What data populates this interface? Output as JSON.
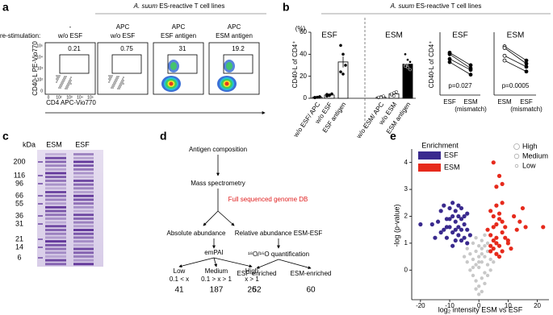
{
  "panel_labels": [
    "a",
    "b",
    "c",
    "d",
    "e"
  ],
  "flow": {
    "header_italic": "A. suum",
    "header_rest": "ES-reactive T cell lines",
    "row_label": "re-stimulation:",
    "columns": [
      {
        "line1": "-",
        "line2": "w/o ESF"
      },
      {
        "line1": "APC",
        "line2": "w/o ESF"
      },
      {
        "line1": "APC",
        "line2": "ESF antigen"
      },
      {
        "line1": "APC",
        "line2": "ESM antigen"
      }
    ],
    "gate_values": [
      0.21,
      0.75,
      31,
      19.2
    ],
    "y_label": "CD40-L PE-Vio770",
    "x_label": "CD4 APC-Vio770",
    "axis_ticks": [
      "0",
      "10²",
      "10³",
      "10⁴",
      "10⁵"
    ]
  },
  "b_header": {
    "italic": "A. suum",
    "rest": "ES-reactive T cell lines"
  },
  "gel": {
    "unit": "kDa",
    "lanes": [
      "ESM",
      "ESF"
    ],
    "markers": [
      200,
      116,
      96,
      66,
      55,
      36,
      31,
      21,
      14,
      6
    ]
  },
  "diagram": {
    "start": "Antigen composition",
    "ms": "Mass spectrometry",
    "db": "Full sequenced genome DB",
    "absolute": "Absolute abundance",
    "relative": "Relative abundance ESM-ESF",
    "empai": "emPAI",
    "quant": "¹⁸O/¹⁶O quantification",
    "levels": [
      {
        "name": "Low",
        "range": "0.1 < x",
        "count": 41
      },
      {
        "name": "Medium",
        "range": "0.1 > x > 1",
        "count": 187
      },
      {
        "name": "High",
        "range": "x > 1",
        "count": 26
      }
    ],
    "enriched": [
      {
        "name": "ESF-enriched",
        "count": 52
      },
      {
        "name": "ESM-enriched",
        "count": 60
      }
    ]
  },
  "chart_data": [
    {
      "type": "bar",
      "y_label": "CD40-L of CD4⁺",
      "y_unit": "(%)",
      "groups": [
        "ESF",
        "ESM"
      ],
      "categories": [
        "w/o ESF/ APC",
        "w/o ESF",
        "ESF antigen",
        "w/o ESM/ APC",
        "w/o ESM",
        "ESM antigen"
      ],
      "values": [
        1,
        3,
        33,
        1,
        4,
        31
      ],
      "errors": [
        0.2,
        0.4,
        5,
        0.3,
        0.7,
        1.8
      ],
      "points": [
        [
          0.5,
          1,
          1.5,
          0.8
        ],
        [
          2,
          3,
          4,
          3.5,
          2.5
        ],
        [
          48,
          40,
          30,
          24,
          22
        ],
        [
          0.5,
          1.5,
          2,
          1,
          0.8
        ],
        [
          3,
          5,
          6,
          4,
          2
        ],
        [
          40,
          35,
          33,
          30,
          28,
          26,
          29
        ]
      ],
      "colors": [
        "#ffffff",
        "#ffffff",
        "#ffffff",
        "#ffffff",
        "#ffffff",
        "#000000"
      ],
      "ylim": [
        0,
        60
      ],
      "yticks": [
        0,
        20,
        40,
        60
      ]
    },
    {
      "type": "paired",
      "title": "ESF",
      "y_label": "CD40-L of CD4⁺",
      "categories": [
        "ESF",
        "ESM"
      ],
      "category_notes": [
        null,
        "(mismatch)"
      ],
      "series": [
        {
          "values": [
            27,
            19
          ]
        },
        {
          "values": [
            26,
            17
          ]
        },
        {
          "values": [
            23,
            16
          ]
        },
        {
          "values": [
            21,
            13
          ]
        }
      ],
      "annotation": "p=0.027",
      "ylim": [
        0,
        40
      ]
    },
    {
      "type": "paired",
      "title": "ESM",
      "categories": [
        "ESM",
        "ESF"
      ],
      "category_notes": [
        null,
        "(mismatch)"
      ],
      "series": [
        {
          "values": [
            31,
            22
          ]
        },
        {
          "values": [
            30,
            20
          ]
        },
        {
          "values": [
            25,
            18
          ]
        },
        {
          "values": [
            22,
            15
          ]
        }
      ],
      "annotation": "p=0.0005",
      "ylim": [
        0,
        40
      ]
    },
    {
      "type": "scatter",
      "x_label": "log₂ intensity ESM vs ESF",
      "y_label": "-log (p-value)",
      "legend_title": "Enrichment",
      "size_legend": [
        "High",
        "Medium",
        "Low"
      ],
      "series": [
        {
          "name": "ESF",
          "color": "#3a2a8e",
          "x": [
            -14,
            -13,
            -12,
            -12,
            -11,
            -11,
            -10,
            -10,
            -9,
            -9,
            -9,
            -8,
            -8,
            -8,
            -7,
            -7,
            -7,
            -6,
            -6,
            -6,
            -5,
            -5,
            -5,
            -4,
            -4,
            -13,
            -11,
            -10,
            -8,
            -6,
            -16,
            -15,
            -3,
            -4,
            -7,
            -9,
            -20
          ],
          "values": [
            1.8,
            2.2,
            1.5,
            2.4,
            1.9,
            1.2,
            2.3,
            1.6,
            2.0,
            1.4,
            2.5,
            1.8,
            1.1,
            2.2,
            1.6,
            2.0,
            1.3,
            1.9,
            1.5,
            2.3,
            1.7,
            1.2,
            2.0,
            1.5,
            1.0,
            1.4,
            1.6,
            1.9,
            1.5,
            1.1,
            1.7,
            1.2,
            1.3,
            2.1,
            2.4,
            0.9,
            1.7
          ]
        },
        {
          "name": "ESM",
          "color": "#e62a1c",
          "x": [
            5,
            6,
            7,
            8,
            4,
            5,
            6,
            7,
            8,
            9,
            3,
            4,
            5,
            6,
            7,
            8,
            9,
            10,
            4,
            5,
            6,
            7,
            8,
            12,
            14,
            15,
            16,
            6,
            7,
            8,
            5,
            10,
            11,
            13,
            22,
            4,
            6
          ],
          "values": [
            4.0,
            3.1,
            3.5,
            3.2,
            2.2,
            2.0,
            2.4,
            2.1,
            1.8,
            1.6,
            1.5,
            1.3,
            1.1,
            1.0,
            0.9,
            1.4,
            1.2,
            1.1,
            0.7,
            0.8,
            0.6,
            0.5,
            0.7,
            2.0,
            1.8,
            2.3,
            1.6,
            1.7,
            1.9,
            2.5,
            1.6,
            1.0,
            0.8,
            1.5,
            1.6,
            0.9,
            1.2
          ]
        },
        {
          "color": "#c8c8c8",
          "x": [
            -4,
            -3,
            -2,
            -1,
            0,
            1,
            2,
            3,
            -3,
            -2,
            -1,
            0,
            1,
            2,
            3,
            4,
            -2,
            -1,
            0,
            1,
            2,
            -1,
            0,
            1,
            2,
            3,
            0,
            1,
            -4,
            -5,
            4,
            5,
            2,
            3,
            -1,
            1,
            0,
            -2
          ],
          "values": [
            0.8,
            0.6,
            0.4,
            0.2,
            0.1,
            0.3,
            0.5,
            0.7,
            0.0,
            -0.2,
            -0.4,
            -0.6,
            -0.3,
            -0.1,
            0.2,
            0.4,
            1.0,
            0.7,
            0.5,
            -0.8,
            0.9,
            1.2,
            0.9,
            0.6,
            -0.5,
            1.0,
            -0.9,
            1.1,
            0.3,
            0.5,
            0.0,
            0.3,
            1.3,
            -0.2,
            -0.7,
            0.8,
            0.3,
            0.1
          ]
        }
      ],
      "xlim": [
        -23,
        24
      ],
      "xticks": [
        -20,
        -10,
        0,
        10,
        20
      ],
      "ylim": [
        -1.1,
        4.5
      ],
      "yticks": [
        0,
        1,
        2,
        3,
        4
      ]
    }
  ]
}
